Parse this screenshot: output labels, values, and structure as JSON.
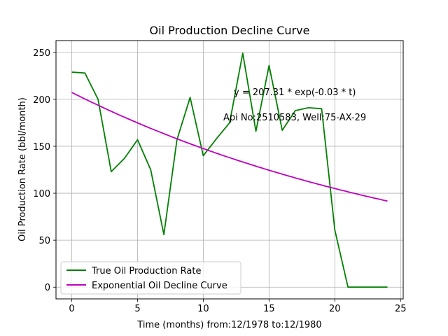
{
  "chart_data": {
    "type": "line",
    "title": "Oil Production Decline Curve",
    "xlabel": "Time (months) from:12/1978 to:12/1980",
    "ylabel": "Oil Production Rate (bbl/month)",
    "xlim": [
      -1.2,
      25.2
    ],
    "ylim": [
      -12.5,
      262.5
    ],
    "xticks": [
      0,
      5,
      10,
      15,
      20,
      25
    ],
    "yticks": [
      0,
      50,
      100,
      150,
      200,
      250
    ],
    "grid": true,
    "legend_position": "lower-left",
    "series": [
      {
        "name": "True Oil Production Rate",
        "color": "#008000",
        "x": [
          0,
          1,
          2,
          3,
          4,
          5,
          6,
          7,
          8,
          9,
          10,
          11,
          12,
          13,
          14,
          15,
          16,
          17,
          18,
          19,
          20,
          21,
          22,
          23,
          24
        ],
        "values": [
          229,
          228,
          200,
          123,
          137,
          157,
          125,
          56,
          157,
          202,
          140,
          158,
          175,
          249,
          166,
          236,
          167,
          188,
          191,
          190,
          61,
          0,
          0,
          0,
          0
        ]
      },
      {
        "name": "Exponential Oil Decline Curve",
        "color": "#bf00bf",
        "function": "207.31*exp(-0.034*t)",
        "x": [
          0,
          2,
          4,
          6,
          8,
          10,
          12,
          14,
          16,
          18,
          20,
          22,
          24
        ],
        "values": [
          207.3,
          193.7,
          180.9,
          169.0,
          157.8,
          147.4,
          137.7,
          128.6,
          120.1,
          112.2,
          104.8,
          97.9,
          91.4
        ]
      }
    ],
    "annotations": [
      {
        "text": "y = 207.31 * exp(-0.03 * t)",
        "x": 12.4,
        "y": 204
      },
      {
        "text": "Api No:2510583, Well:75-AX-29",
        "x": 11.6,
        "y": 177
      }
    ]
  }
}
